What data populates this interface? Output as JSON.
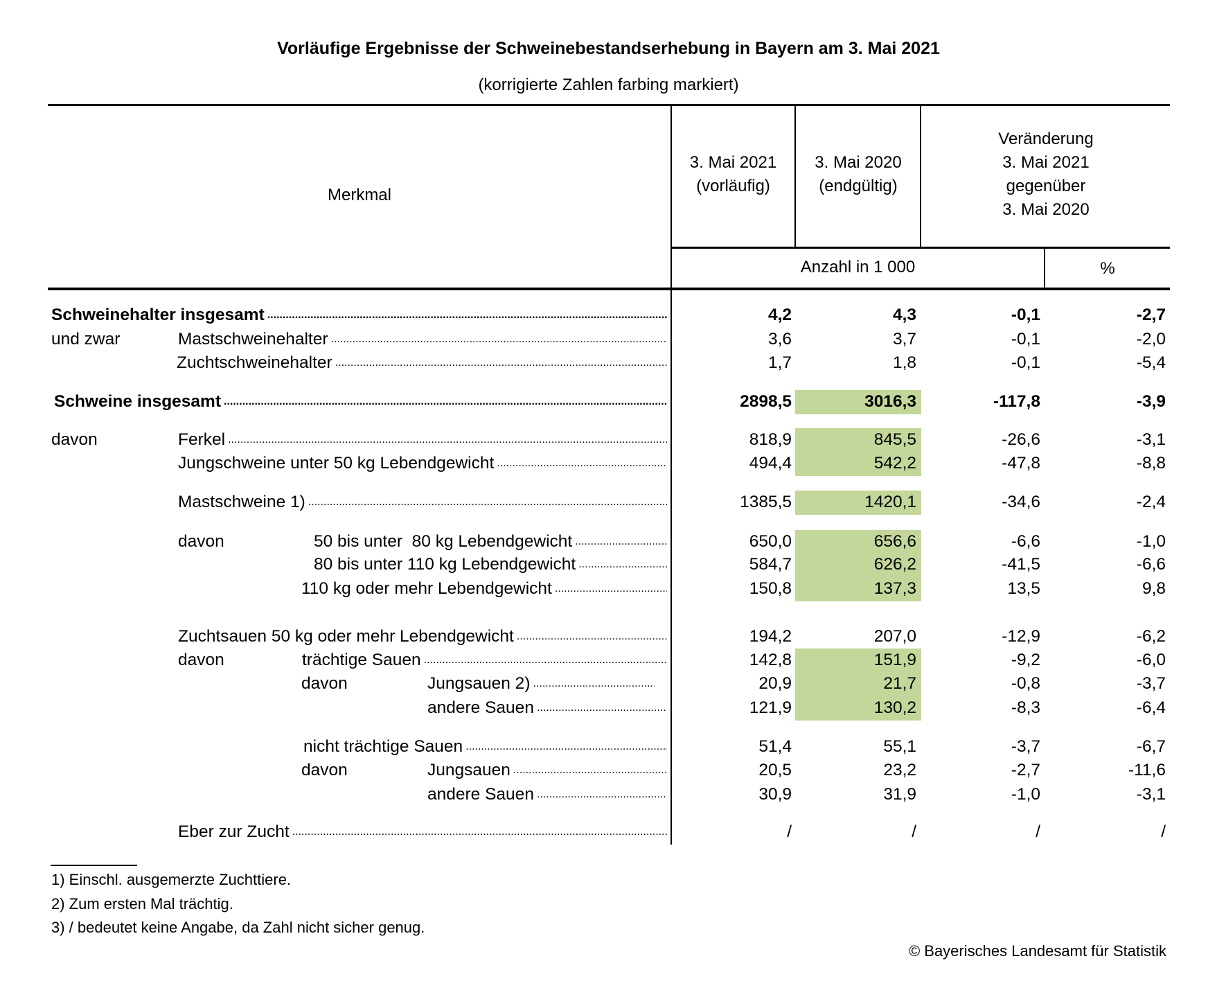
{
  "title": "Vorläufige Ergebnisse der Schweinebestandserhebung in Bayern am 3. Mai 2021",
  "subtitle": "(korrigierte Zahlen farbing markiert)",
  "header": {
    "merkmal": "Merkmal",
    "col1": [
      "3. Mai 2021",
      "(vorläufig)"
    ],
    "col2": [
      "3. Mai 2020",
      "(endgültig)"
    ],
    "col3": [
      "Veränderung",
      "3. Mai 2021",
      "gegenüber",
      "3. Mai 2020"
    ],
    "unit_count": "Anzahl in 1 000",
    "unit_pct": "%"
  },
  "highlight_color": "#c4d79b",
  "rows": [
    {
      "prefix": "",
      "label": "Schweinehalter insgesamt",
      "bold": true,
      "corrected": false,
      "values": [
        "4,2",
        "4,3",
        "-0,1",
        "-2,7"
      ]
    },
    {
      "prefix": "und zwar",
      "label": "Mastschweinehalter",
      "bold": false,
      "corrected": false,
      "values": [
        "3,6",
        "3,7",
        "-0,1",
        "-2,0"
      ]
    },
    {
      "prefix": "",
      "label": "Zuchtschweinehalter",
      "bold": false,
      "corrected": false,
      "values": [
        "1,7",
        "1,8",
        "-0,1",
        "-5,4"
      ]
    },
    {
      "prefix": "",
      "label": "Schweine insgesamt",
      "bold": true,
      "corrected": true,
      "values": [
        "2898,5",
        "3016,3",
        "-117,8",
        "-3,9"
      ]
    },
    {
      "prefix": "davon",
      "label": "Ferkel",
      "bold": false,
      "corrected": true,
      "values": [
        "818,9",
        "845,5",
        "-26,6",
        "-3,1"
      ]
    },
    {
      "prefix": "",
      "label": "Jungschweine unter 50 kg Lebendgewicht",
      "bold": false,
      "corrected": true,
      "values": [
        "494,4",
        "542,2",
        "-47,8",
        "-8,8"
      ]
    },
    {
      "prefix": "",
      "label": "Mastschweine 1)",
      "bold": false,
      "corrected": true,
      "values": [
        "1385,5",
        "1420,1",
        "-34,6",
        "-2,4"
      ]
    },
    {
      "prefix": "davon",
      "label": "50 bis unter  80 kg Lebendgewicht",
      "bold": false,
      "corrected": true,
      "values": [
        "650,0",
        "656,6",
        "-6,6",
        "-1,0"
      ]
    },
    {
      "prefix": "",
      "label": "80 bis unter 110 kg Lebendgewicht",
      "bold": false,
      "corrected": true,
      "values": [
        "584,7",
        "626,2",
        "-41,5",
        "-6,6"
      ]
    },
    {
      "prefix": "",
      "label": "110 kg oder mehr Lebendgewicht",
      "bold": false,
      "corrected": true,
      "values": [
        "150,8",
        "137,3",
        "13,5",
        "9,8"
      ]
    },
    {
      "prefix": "",
      "label": "Zuchtsauen 50 kg oder mehr Lebendgewicht",
      "bold": false,
      "corrected": false,
      "values": [
        "194,2",
        "207,0",
        "-12,9",
        "-6,2"
      ]
    },
    {
      "prefix": "davon",
      "label": "trächtige Sauen",
      "bold": false,
      "corrected": true,
      "values": [
        "142,8",
        "151,9",
        "-9,2",
        "-6,0"
      ]
    },
    {
      "prefix": "davon",
      "label": "Jungsauen 2)",
      "bold": false,
      "corrected": true,
      "values": [
        "20,9",
        "21,7",
        "-0,8",
        "-3,7"
      ]
    },
    {
      "prefix": "",
      "label": "andere Sauen",
      "bold": false,
      "corrected": true,
      "values": [
        "121,9",
        "130,2",
        "-8,3",
        "-6,4"
      ]
    },
    {
      "prefix": "",
      "label": "nicht trächtige Sauen",
      "bold": false,
      "corrected": false,
      "values": [
        "51,4",
        "55,1",
        "-3,7",
        "-6,7"
      ]
    },
    {
      "prefix": "davon",
      "label": "Jungsauen",
      "bold": false,
      "corrected": false,
      "values": [
        "20,5",
        "23,2",
        "-2,7",
        "-11,6"
      ]
    },
    {
      "prefix": "",
      "label": "andere Sauen",
      "bold": false,
      "corrected": false,
      "values": [
        "30,9",
        "31,9",
        "-1,0",
        "-3,1"
      ]
    },
    {
      "prefix": "",
      "label": "Eber zur Zucht",
      "bold": false,
      "corrected": false,
      "values": [
        "/",
        "/",
        "/",
        "/"
      ]
    }
  ],
  "footnotes": [
    "1) Einschl. ausgemerzte Zuchttiere.",
    "2) Zum ersten Mal trächtig.",
    "3) / bedeutet keine Angabe, da Zahl nicht sicher genug."
  ],
  "copyright": "© Bayerisches Landesamt für Statistik"
}
